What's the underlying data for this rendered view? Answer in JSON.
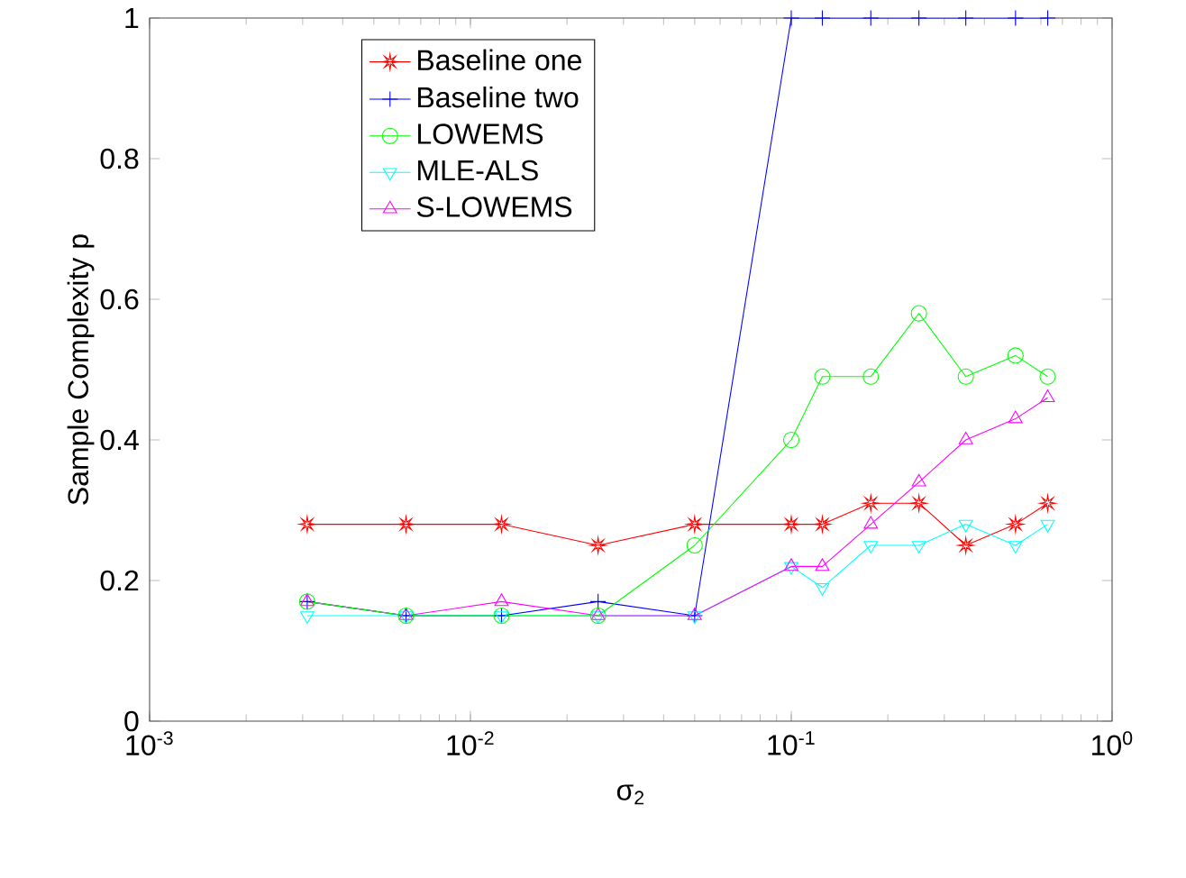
{
  "chart_data": {
    "type": "line",
    "xlabel": "σ$_{2}$",
    "ylabel": "Sample Complexity p",
    "log": "x",
    "x": [
      0.0031,
      0.0063,
      0.0125,
      0.025,
      0.05,
      0.1,
      0.125,
      0.177,
      0.25,
      0.35,
      0.5,
      0.63
    ],
    "series": [
      {
        "name": "Baseline one",
        "color": "#ff0000",
        "marker": "star",
        "values": [
          0.28,
          0.28,
          0.28,
          0.25,
          0.28,
          0.28,
          0.28,
          0.31,
          0.31,
          0.25,
          0.28,
          0.31
        ]
      },
      {
        "name": "Baseline two",
        "color": "#0000ff",
        "marker": "cross",
        "values": [
          0.17,
          0.15,
          0.15,
          0.17,
          0.15,
          1,
          1,
          1,
          1,
          1,
          1,
          1
        ]
      },
      {
        "name": "LOWEMS",
        "color": "#00ff00",
        "marker": "circle",
        "values": [
          0.17,
          0.15,
          0.15,
          0.15,
          0.25,
          0.4,
          0.49,
          0.49,
          0.58,
          0.49,
          0.52,
          0.49
        ]
      },
      {
        "name": "MLE-ALS",
        "color": "#00ffff",
        "marker": "triangle-down",
        "values": [
          0.15,
          0.15,
          0.15,
          0.15,
          0.15,
          0.22,
          0.19,
          0.25,
          0.25,
          0.28,
          0.25,
          0.28
        ]
      },
      {
        "name": "S-LOWEMS",
        "color": "#ff00ff",
        "marker": "triangle",
        "values": [
          0.17,
          0.15,
          0.17,
          0.15,
          0.15,
          0.22,
          0.22,
          0.28,
          0.34,
          0.4,
          0.43,
          0.46
        ]
      }
    ],
    "xlim": [
      0.001,
      1
    ],
    "ylim": [
      0,
      1
    ],
    "xticks": [
      {
        "value": 0.001,
        "label": "10$^{-3}$"
      },
      {
        "value": 0.01,
        "label": "10$^{-2}$"
      },
      {
        "value": 0.1,
        "label": "10$^{-1}$"
      },
      {
        "value": 1,
        "label": "10$^{0}$"
      }
    ],
    "yticks": [
      0,
      0.2,
      0.4,
      0.6,
      0.8,
      1
    ],
    "legend": "top left",
    "grid": false
  }
}
